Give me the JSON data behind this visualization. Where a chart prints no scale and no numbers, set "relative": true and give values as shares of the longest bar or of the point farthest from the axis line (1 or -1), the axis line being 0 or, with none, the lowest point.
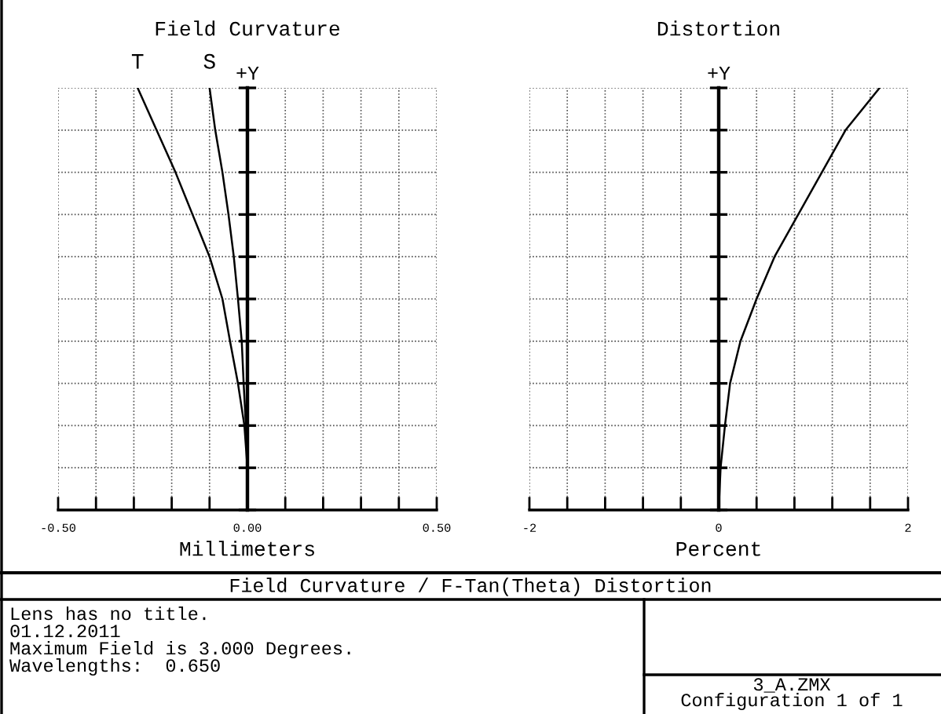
{
  "chart_data": [
    {
      "type": "line",
      "title": "Field Curvature",
      "xlabel": "Millimeters",
      "annotations": [
        "+Y"
      ],
      "series": [
        {
          "name": "T",
          "color": "#000000",
          "x": [
            0,
            0,
            -0.008,
            -0.025,
            -0.046,
            -0.066,
            -0.1,
            -0.145,
            -0.19,
            -0.24,
            -0.29
          ],
          "values": [
            0,
            0.1,
            0.2,
            0.3,
            0.4,
            0.5,
            0.6,
            0.7,
            0.8,
            0.9,
            1
          ]
        },
        {
          "name": "S",
          "color": "#000000",
          "x": [
            0,
            0,
            -0.004,
            -0.01,
            -0.015,
            -0.025,
            -0.036,
            -0.05,
            -0.066,
            -0.085,
            -0.1
          ],
          "values": [
            0,
            0.1,
            0.2,
            0.3,
            0.4,
            0.5,
            0.6,
            0.7,
            0.8,
            0.9,
            1
          ]
        }
      ],
      "xlim": [
        -0.5,
        0.5
      ],
      "relative": true,
      "xticks": [
        {
          "value": -0.5,
          "label": "-0.50"
        },
        {
          "value": -0.4,
          "label": null
        },
        {
          "value": -0.3,
          "label": null
        },
        {
          "value": -0.2,
          "label": null
        },
        {
          "value": -0.1,
          "label": null
        },
        {
          "value": 0,
          "label": "0.00"
        },
        {
          "value": 0.1,
          "label": null
        },
        {
          "value": 0.2,
          "label": null
        },
        {
          "value": 0.3,
          "label": null
        },
        {
          "value": 0.4,
          "label": null
        },
        {
          "value": 0.5,
          "label": "0.50"
        }
      ],
      "tick_labels": "x",
      "grid": true,
      "line_style": "solid",
      "marker": "none"
    },
    {
      "type": "line",
      "title": "Distortion",
      "xlabel": "Percent",
      "annotations": [
        "+Y"
      ],
      "series": [
        {
          "color": "#000000",
          "x": [
            0,
            0.02,
            0.066,
            0.12,
            0.23,
            0.4,
            0.59,
            0.84,
            1.09,
            1.34,
            1.7
          ],
          "values": [
            0,
            0.1,
            0.2,
            0.3,
            0.4,
            0.5,
            0.6,
            0.7,
            0.8,
            0.9,
            1
          ]
        }
      ],
      "xlim": [
        -2,
        2
      ],
      "relative": true,
      "xticks": [
        -2,
        {
          "value": -1.6,
          "label": null
        },
        {
          "value": -1.2,
          "label": null
        },
        {
          "value": -0.8,
          "label": null
        },
        {
          "value": -0.4,
          "label": null
        },
        0,
        {
          "value": 0.4,
          "label": null
        },
        {
          "value": 0.8,
          "label": null
        },
        {
          "value": 1.2,
          "label": null
        },
        {
          "value": 1.6,
          "label": null
        },
        2
      ],
      "tick_labels": "x",
      "grid": true,
      "line_style": "solid",
      "marker": "none"
    },
    {
      "type": "other",
      "title": "Field Curvature / F-Tan(Theta) Distortion",
      "annotations": [
        "Lens has no title.",
        "01.12.2011",
        "Maximum Field is 3.000 Degrees.",
        "Wavelengths:  0.650",
        "3_A.ZMX",
        "Configuration 1 of 1"
      ]
    }
  ]
}
